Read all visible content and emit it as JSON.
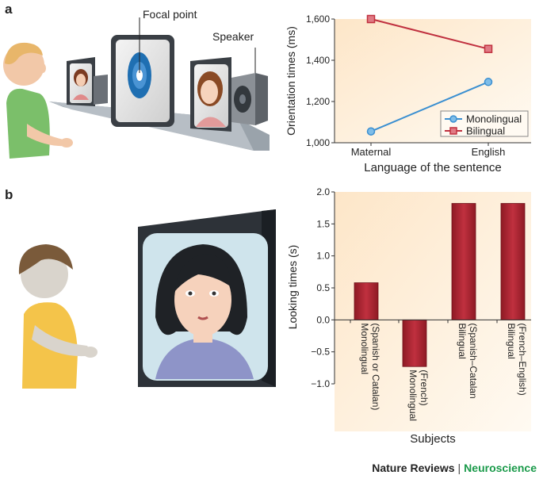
{
  "panels": {
    "a": "a",
    "b": "b"
  },
  "illustration": {
    "focal_point_label": "Focal point",
    "speaker_label": "Speaker"
  },
  "chart_data": [
    {
      "type": "line",
      "categories": [
        "Maternal",
        "English"
      ],
      "series": [
        {
          "name": "Monolingual",
          "values": [
            1055,
            1295
          ],
          "color": "#3a8fd1",
          "marker": "circle"
        },
        {
          "name": "Bilingual",
          "values": [
            1600,
            1455
          ],
          "color": "#c0303f",
          "marker": "square"
        }
      ],
      "xlabel": "Language of the sentence",
      "ylabel": "Orientation times (ms)",
      "ylim": [
        1000,
        1600
      ],
      "yticks": [
        "1,000",
        "1,200",
        "1,400",
        "1,600"
      ],
      "yticks_values": [
        1000,
        1200,
        1400,
        1600
      ],
      "legend": "bottom-right",
      "grid": false
    },
    {
      "type": "bar",
      "categories": [
        [
          "Monolingual",
          "(Spanish or Catalan)"
        ],
        [
          "Monolingual",
          "(French)"
        ],
        [
          "Bilingual",
          "(Spanish–Catalan"
        ],
        [
          "Bilingual",
          "(French–English)"
        ]
      ],
      "values": [
        0.58,
        -0.73,
        1.82,
        1.82
      ],
      "color": "#b8232f",
      "xlabel": "Subjects",
      "ylabel": "Looking times (s)",
      "ylim": [
        -1.0,
        2.0
      ],
      "yticks": [
        "2.0",
        "1.5",
        "1.0",
        "0.5",
        "0.0",
        "−0.5",
        "−1.0"
      ],
      "yticks_values": [
        2.0,
        1.5,
        1.0,
        0.5,
        0.0,
        -0.5,
        -1.0
      ],
      "grid": false
    }
  ],
  "footer": {
    "journal": "Nature Reviews",
    "separator": "|",
    "field": "Neuroscience"
  }
}
